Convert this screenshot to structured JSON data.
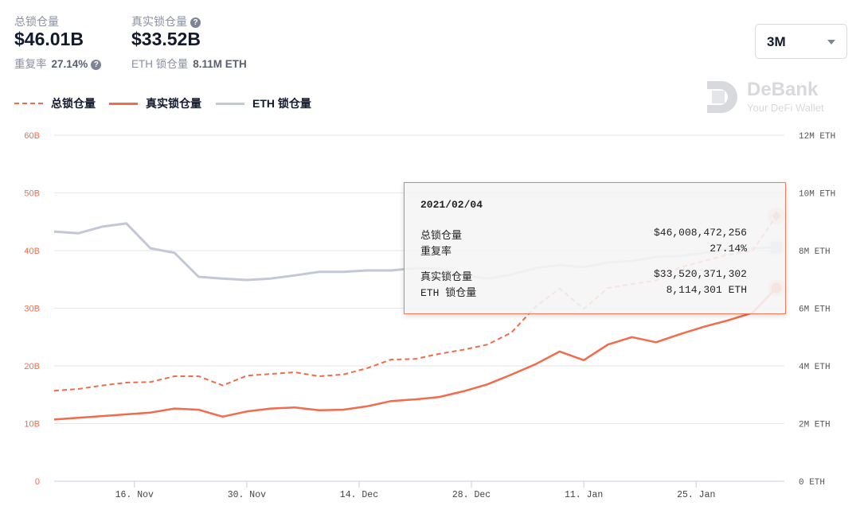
{
  "summary": {
    "total_label": "总锁仓量",
    "total_value": "$46.01B",
    "dup_label": "重复率",
    "dup_value": "27.14%",
    "real_label": "真实锁仓量",
    "real_value": "$33.52B",
    "eth_label": "ETH 锁仓量",
    "eth_value": "8.11M ETH",
    "help_icon": "?"
  },
  "range_select": {
    "value": "3M"
  },
  "watermark": {
    "brand": "DeBank",
    "tagline": "Your DeFi Wallet"
  },
  "tooltip": {
    "date": "2021/02/04",
    "rows": [
      {
        "label": "总锁仓量",
        "value": "$46,008,472,256"
      },
      {
        "label": "重复率",
        "value": "27.14%"
      },
      {
        "label": "真实锁仓量",
        "value": "$33,520,371,302"
      },
      {
        "label": "ETH 锁仓量",
        "value": "8,114,301 ETH"
      }
    ]
  },
  "colors": {
    "total": "#f26b4b",
    "real": "#f26b4b",
    "eth": "#c3c8d6",
    "left_axis": "#f26b4b",
    "grid": "#e6e6e6"
  },
  "chart_data": {
    "type": "line",
    "legend": [
      "总锁仓量",
      "真实锁仓量",
      "ETH 锁仓量"
    ],
    "legend_position": "top-left",
    "grid": true,
    "x": [
      "2020-11-06",
      "2020-11-09",
      "2020-11-12",
      "2020-11-15",
      "2020-11-18",
      "2020-11-21",
      "2020-11-24",
      "2020-11-27",
      "2020-11-30",
      "2020-12-03",
      "2020-12-06",
      "2020-12-09",
      "2020-12-12",
      "2020-12-15",
      "2020-12-18",
      "2020-12-21",
      "2020-12-24",
      "2020-12-27",
      "2020-12-30",
      "2021-01-02",
      "2021-01-05",
      "2021-01-08",
      "2021-01-11",
      "2021-01-14",
      "2021-01-17",
      "2021-01-20",
      "2021-01-23",
      "2021-01-26",
      "2021-01-29",
      "2021-02-01",
      "2021-02-04"
    ],
    "xlim": [
      "2020-11-06",
      "2021-02-04"
    ],
    "x_ticks": [
      {
        "date": "2020-11-16",
        "label": "16. Nov"
      },
      {
        "date": "2020-11-30",
        "label": "30. Nov"
      },
      {
        "date": "2020-12-14",
        "label": "14. Dec"
      },
      {
        "date": "2020-12-28",
        "label": "28. Dec"
      },
      {
        "date": "2021-01-11",
        "label": "11. Jan"
      },
      {
        "date": "2021-01-25",
        "label": "25. Jan"
      }
    ],
    "y_left": {
      "ticks": [
        "0",
        "10B",
        "20B",
        "30B",
        "40B",
        "50B",
        "60B"
      ],
      "range": [
        0,
        60
      ],
      "unit": "B USD"
    },
    "y_right": {
      "ticks": [
        "0 ETH",
        "2M ETH",
        "4M ETH",
        "6M ETH",
        "8M ETH",
        "10M ETH",
        "12M ETH"
      ],
      "range": [
        0,
        12
      ],
      "unit": "M ETH"
    },
    "series": [
      {
        "name": "总锁仓量",
        "axis": "left",
        "style": "dashed",
        "marker": "diamond",
        "values": [
          15.7,
          16.0,
          16.6,
          17.1,
          17.2,
          18.2,
          18.2,
          16.6,
          18.3,
          18.6,
          18.9,
          18.2,
          18.5,
          19.6,
          21.1,
          21.2,
          22.1,
          22.8,
          23.7,
          25.8,
          30.3,
          33.4,
          29.9,
          33.5,
          34.2,
          34.8,
          37.1,
          38.2,
          39.3,
          39.9,
          46.01
        ]
      },
      {
        "name": "真实锁仓量",
        "axis": "left",
        "style": "solid",
        "marker": "circle",
        "values": [
          10.7,
          11.0,
          11.3,
          11.6,
          11.9,
          12.6,
          12.4,
          11.2,
          12.1,
          12.6,
          12.8,
          12.3,
          12.4,
          13.0,
          13.9,
          14.2,
          14.6,
          15.6,
          16.8,
          18.5,
          20.3,
          22.5,
          21.0,
          23.7,
          25.0,
          24.1,
          25.5,
          26.8,
          27.9,
          29.2,
          33.52
        ]
      },
      {
        "name": "ETH 锁仓量",
        "axis": "right",
        "style": "solid",
        "marker": "square",
        "values": [
          8.66,
          8.6,
          8.83,
          8.94,
          8.08,
          7.92,
          7.09,
          7.03,
          6.98,
          7.03,
          7.14,
          7.26,
          7.26,
          7.31,
          7.31,
          7.39,
          7.37,
          7.14,
          7.03,
          7.17,
          7.39,
          7.5,
          7.42,
          7.59,
          7.64,
          7.78,
          7.81,
          7.92,
          8.06,
          8.08,
          8.114
        ]
      }
    ]
  }
}
